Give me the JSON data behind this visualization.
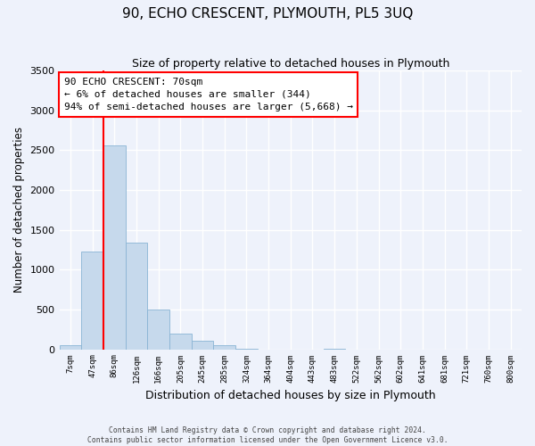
{
  "title": "90, ECHO CRESCENT, PLYMOUTH, PL5 3UQ",
  "subtitle": "Size of property relative to detached houses in Plymouth",
  "xlabel": "Distribution of detached houses by size in Plymouth",
  "ylabel": "Number of detached properties",
  "bar_labels": [
    "7sqm",
    "47sqm",
    "86sqm",
    "126sqm",
    "166sqm",
    "205sqm",
    "245sqm",
    "285sqm",
    "324sqm",
    "364sqm",
    "404sqm",
    "443sqm",
    "483sqm",
    "522sqm",
    "562sqm",
    "602sqm",
    "641sqm",
    "681sqm",
    "721sqm",
    "760sqm",
    "800sqm"
  ],
  "bar_values": [
    50,
    1230,
    2560,
    1340,
    500,
    200,
    110,
    50,
    5,
    0,
    0,
    0,
    5,
    0,
    0,
    0,
    0,
    0,
    0,
    0,
    0
  ],
  "bar_color": "#c6d9ec",
  "bar_edgecolor": "#8ab4d4",
  "vline_color": "red",
  "vline_pos": 1.5,
  "ylim": [
    0,
    3500
  ],
  "yticks": [
    0,
    500,
    1000,
    1500,
    2000,
    2500,
    3000,
    3500
  ],
  "annotation_box_text": "90 ECHO CRESCENT: 70sqm\n← 6% of detached houses are smaller (344)\n94% of semi-detached houses are larger (5,668) →",
  "footer_line1": "Contains HM Land Registry data © Crown copyright and database right 2024.",
  "footer_line2": "Contains public sector information licensed under the Open Government Licence v3.0.",
  "background_color": "#eef2fb",
  "grid_color": "#ffffff"
}
